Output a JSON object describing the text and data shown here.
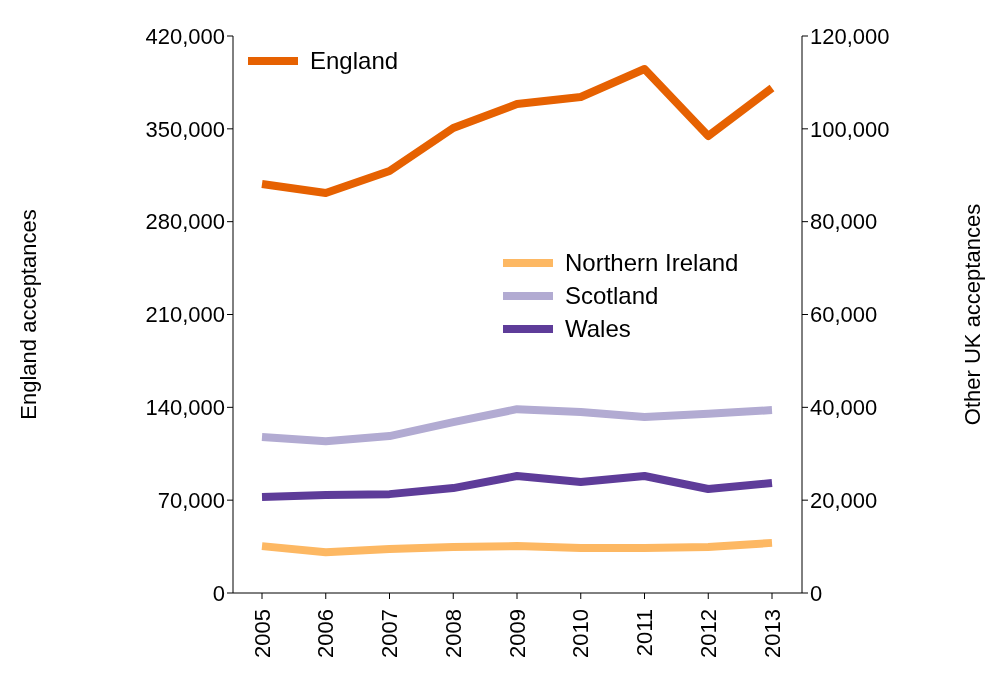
{
  "chart_data": {
    "type": "line",
    "ylabel": "England acceptances",
    "y2label": "Other UK acceptances",
    "categories": [
      "2005",
      "2006",
      "2007",
      "2008",
      "2009",
      "2010",
      "2011",
      "2012",
      "2013"
    ],
    "series": [
      {
        "name": "England",
        "color": "#e66101",
        "values": [
          308400,
          301600,
          318200,
          350600,
          368700,
          374000,
          395100,
          344600,
          380800
        ]
      },
      {
        "name": "Northern Ireland",
        "color": "#fdb863",
        "axis": "y2",
        "values": [
          10100,
          8800,
          9500,
          9900,
          10100,
          9700,
          9700,
          9900,
          10800
        ]
      },
      {
        "name": "Scotland",
        "color": "#b2abd2",
        "axis": "y2",
        "values": [
          33600,
          32700,
          33800,
          36800,
          39600,
          39000,
          37900,
          38600,
          39400
        ]
      },
      {
        "name": "Wales",
        "color": "#5e3c99",
        "axis": "y2",
        "values": [
          20700,
          21100,
          21300,
          22600,
          25200,
          23900,
          25200,
          22400,
          23700
        ]
      }
    ],
    "ylim": [
      0,
      420000
    ],
    "yticks": [
      0,
      {
        "value": 70000,
        "label": "70,000"
      },
      {
        "value": 140000,
        "label": "140,000"
      },
      {
        "value": 210000,
        "label": "210,000"
      },
      {
        "value": 280000,
        "label": "280,000"
      },
      {
        "value": 350000,
        "label": "350,000"
      },
      {
        "value": 420000,
        "label": "420,000"
      }
    ],
    "y2lim": [
      0,
      120000
    ],
    "y2ticks": [
      0,
      {
        "value": 20000,
        "label": "20,000"
      },
      {
        "value": 40000,
        "label": "40,000"
      },
      {
        "value": 60000,
        "label": "60,000"
      },
      {
        "value": 80000,
        "label": "80,000"
      },
      {
        "value": 100000,
        "label": "100,000"
      },
      {
        "value": 120000,
        "label": "120,000"
      }
    ],
    "grid": false,
    "legend": "top left",
    "marker": "none",
    "line_style": "solid"
  }
}
